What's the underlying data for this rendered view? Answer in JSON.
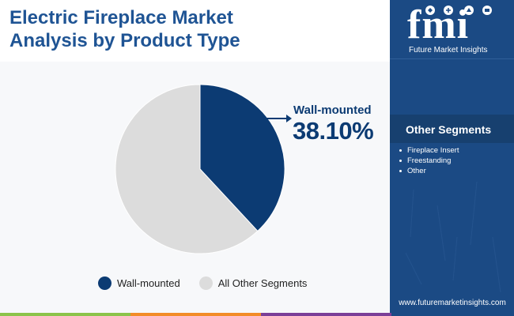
{
  "title": {
    "line1": "Electric Fireplace Market",
    "line2": "Analysis by Product Type"
  },
  "brand": {
    "logo_text": "fmi",
    "name": "Future Market Insights",
    "website": "www.futuremarketinsights.com"
  },
  "other_segments": {
    "title": "Other Segments",
    "items": [
      "Fireplace Insert",
      "Freestanding",
      "Other"
    ]
  },
  "callout": {
    "name": "Wall-mounted",
    "value": "38.10%"
  },
  "legend": [
    {
      "label": "Wall-mounted",
      "color": "#0c3b73"
    },
    {
      "label": "All Other Segments",
      "color": "#dcdcdc"
    }
  ],
  "colors": {
    "primary": "#0c3b73",
    "secondary": "#dcdcdc",
    "panel": "#1b4a84",
    "title": "#1f5494"
  },
  "chart_data": {
    "type": "pie",
    "title": "Electric Fireplace Market Analysis by Product Type",
    "categories": [
      "Wall-mounted",
      "All Other Segments"
    ],
    "values": [
      38.1,
      61.9
    ],
    "colors": [
      "#0c3b73",
      "#dcdcdc"
    ],
    "legend_position": "bottom"
  }
}
